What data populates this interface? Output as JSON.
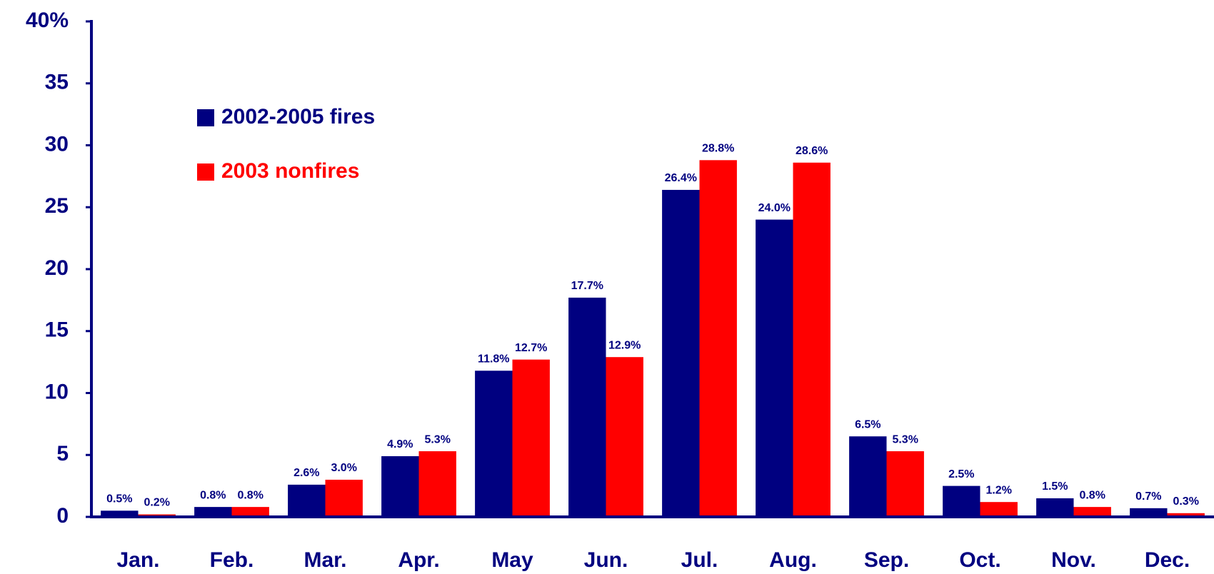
{
  "chart_data": {
    "type": "bar",
    "categories": [
      "Jan.",
      "Feb.",
      "Mar.",
      "Apr.",
      "May",
      "Jun.",
      "Jul.",
      "Aug.",
      "Sep.",
      "Oct.",
      "Nov.",
      "Dec."
    ],
    "series": [
      {
        "name": "2002-2005 fires",
        "color": "#000080",
        "values": [
          0.5,
          0.8,
          2.6,
          4.9,
          11.8,
          17.7,
          26.4,
          24.0,
          6.5,
          2.5,
          1.5,
          0.7
        ],
        "value_labels": [
          "0.5%",
          "0.8%",
          "2.6%",
          "4.9%",
          "11.8%",
          "17.7%",
          "26.4%",
          "24.0%",
          "6.5%",
          "2.5%",
          "1.5%",
          "0.7%"
        ]
      },
      {
        "name": "2003 nonfires",
        "color": "#ff0000",
        "values": [
          0.2,
          0.8,
          3.0,
          5.3,
          12.7,
          12.9,
          28.8,
          28.6,
          5.3,
          1.2,
          0.8,
          0.3
        ],
        "value_labels": [
          "0.2%",
          "0.8%",
          "3.0%",
          "5.3%",
          "12.7%",
          "12.9%",
          "28.8%",
          "28.6%",
          "5.3%",
          "1.2%",
          "0.8%",
          "0.3%"
        ]
      }
    ],
    "ylim": [
      0,
      40
    ],
    "yticks": [
      0,
      5,
      10,
      15,
      20,
      25,
      30,
      35,
      {
        "value": 40,
        "label": "40%"
      }
    ],
    "legend": "upper left"
  }
}
